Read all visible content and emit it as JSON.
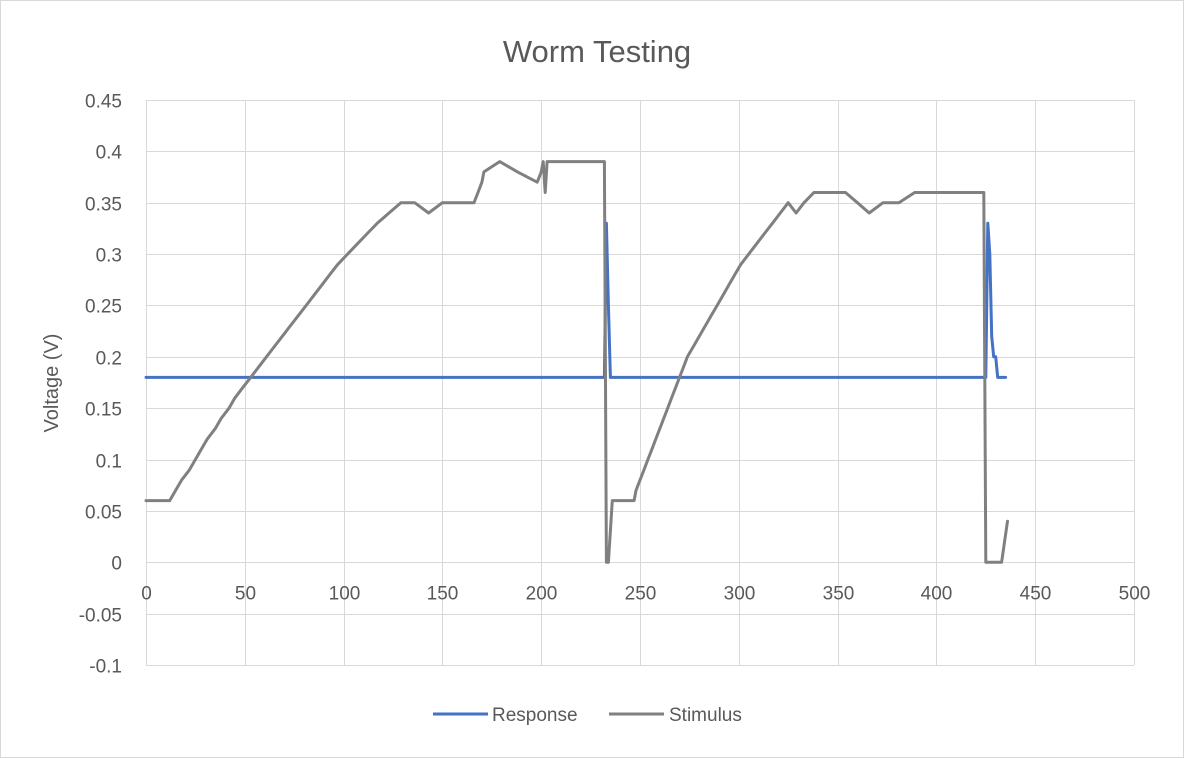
{
  "chart_data": {
    "type": "line",
    "title": "Worm Testing",
    "xlabel": "",
    "ylabel": "Voltage (V)",
    "xlim": [
      0,
      500
    ],
    "ylim": [
      -0.1,
      0.45
    ],
    "xticks": [
      0,
      50,
      100,
      150,
      200,
      250,
      300,
      350,
      400,
      450,
      500
    ],
    "yticks": [
      -0.1,
      -0.05,
      0,
      0.05,
      0.1,
      0.15,
      0.2,
      0.25,
      0.3,
      0.35,
      0.4,
      0.45
    ],
    "xtick_labels": [
      "0",
      "50",
      "100",
      "150",
      "200",
      "250",
      "300",
      "350",
      "400",
      "450",
      "500"
    ],
    "ytick_labels": [
      "-0.1",
      "-0.05",
      "0",
      "0.05",
      "0.1",
      "0.15",
      "0.2",
      "0.25",
      "0.3",
      "0.35",
      "0.4",
      "0.45"
    ],
    "grid": true,
    "legend_position": "bottom",
    "series": [
      {
        "name": "Response",
        "color": "#4472c4",
        "x": [
          0,
          232,
          233,
          234,
          235,
          236,
          424,
          425,
          426,
          427,
          428,
          429,
          430,
          431,
          432,
          435
        ],
        "y": [
          0.18,
          0.18,
          0.33,
          0.25,
          0.18,
          0.18,
          0.18,
          0.18,
          0.33,
          0.3,
          0.22,
          0.2,
          0.2,
          0.18,
          0.18,
          0.18
        ]
      },
      {
        "name": "Stimulus",
        "color": "#808080",
        "x": [
          0,
          12,
          15,
          18,
          22,
          25,
          28,
          31,
          35,
          38,
          42,
          45,
          49,
          53,
          57,
          61,
          65,
          69,
          73,
          77,
          81,
          85,
          89,
          93,
          97,
          102,
          107,
          112,
          117,
          123,
          129,
          136,
          143,
          150,
          158,
          166,
          168,
          170,
          171,
          179,
          188,
          198,
          200,
          201,
          202,
          203,
          216,
          232,
          233,
          234,
          236,
          246,
          247,
          248,
          250,
          252,
          254,
          256,
          258,
          260,
          262,
          264,
          266,
          268,
          270,
          272,
          274,
          277,
          280,
          283,
          286,
          289,
          292,
          295,
          298,
          301,
          305,
          309,
          313,
          317,
          321,
          325,
          329,
          333,
          338,
          343,
          348,
          354,
          360,
          366,
          373,
          381,
          389,
          398,
          400,
          401,
          402,
          403,
          413,
          424,
          425,
          426,
          432,
          433,
          436
        ],
        "y": [
          0.06,
          0.06,
          0.07,
          0.08,
          0.09,
          0.1,
          0.11,
          0.12,
          0.13,
          0.14,
          0.15,
          0.16,
          0.17,
          0.18,
          0.19,
          0.2,
          0.21,
          0.22,
          0.23,
          0.24,
          0.25,
          0.26,
          0.27,
          0.28,
          0.29,
          0.3,
          0.31,
          0.32,
          0.33,
          0.34,
          0.35,
          0.35,
          0.34,
          0.35,
          0.35,
          0.35,
          0.36,
          0.37,
          0.38,
          0.39,
          0.38,
          0.37,
          0.38,
          0.39,
          0.36,
          0.39,
          0.39,
          0.39,
          0.0,
          0.0,
          0.06,
          0.06,
          0.06,
          0.07,
          0.08,
          0.09,
          0.1,
          0.11,
          0.12,
          0.13,
          0.14,
          0.15,
          0.16,
          0.17,
          0.18,
          0.19,
          0.2,
          0.21,
          0.22,
          0.23,
          0.24,
          0.25,
          0.26,
          0.27,
          0.28,
          0.29,
          0.3,
          0.31,
          0.32,
          0.33,
          0.34,
          0.35,
          0.34,
          0.35,
          0.36,
          0.36,
          0.36,
          0.36,
          0.35,
          0.34,
          0.35,
          0.35,
          0.36,
          0.36,
          0.36,
          0.36,
          0.36,
          0.36,
          0.36,
          0.36,
          0.0,
          0.0,
          0.0,
          0.0,
          0.04
        ]
      }
    ]
  }
}
